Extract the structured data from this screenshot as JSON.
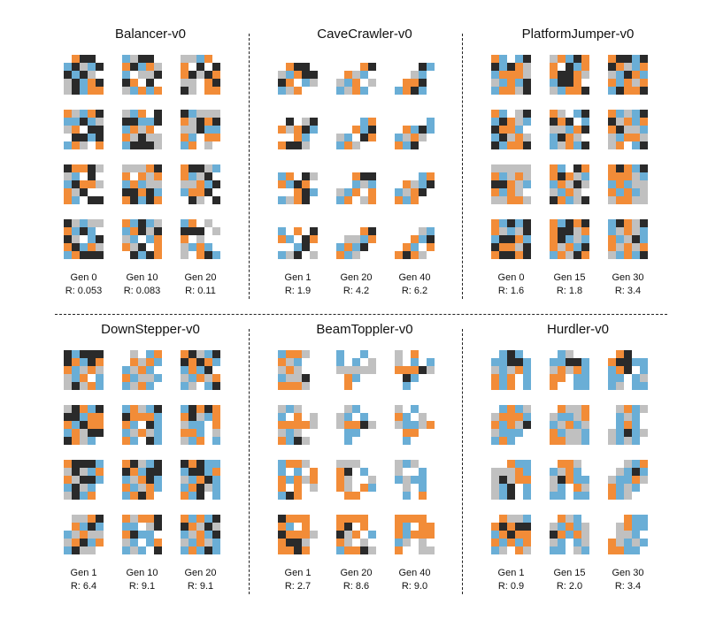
{
  "colors": {
    "rigid": "#2a2a2a",
    "soft": "#c0c0c0",
    "horizontal_actuator": "#f28c38",
    "vertical_actuator": "#6aaed6",
    "empty": "#ffffff"
  },
  "palette_order": [
    "empty",
    "rigid",
    "soft",
    "horizontal_actuator",
    "vertical_actuator"
  ],
  "panels": [
    {
      "title": "Balancer-v0",
      "columns": [
        {
          "gen": "Gen 0",
          "reward": "R: 0.053"
        },
        {
          "gen": "Gen 10",
          "reward": "R: 0.083"
        },
        {
          "gen": "Gen 20",
          "reward": "R: 0.11"
        }
      ],
      "robots": [
        [
          "03110",
          "41241",
          "14120",
          "21431",
          "21433"
        ],
        [
          "42110",
          "31432",
          "40221",
          "13010",
          "24343"
        ],
        [
          "22430",
          "30101",
          "31213",
          "22031",
          "12033"
        ],
        [
          "32431",
          "44142",
          "23011",
          "01141",
          "43203"
        ],
        [
          "24301",
          "11441",
          "43230",
          "32122",
          "41112"
        ],
        [
          "14222",
          "32131",
          "22144",
          "34033",
          "43020"
        ],
        [
          "13312",
          "24010",
          "41332",
          "32100",
          "34011"
        ],
        [
          "22231",
          "30323",
          "43422",
          "11314",
          "31413"
        ],
        [
          "31124",
          "34210",
          "22341",
          "43310",
          "01201"
        ],
        [
          "12422",
          "34140",
          "12041",
          "31432",
          "43111"
        ],
        [
          "34142",
          "43121",
          "24043",
          "32103",
          "01413"
        ],
        [
          "43020",
          "11102",
          "30200",
          "24340",
          "20314"
        ]
      ]
    },
    {
      "title": "CaveCrawler-v0",
      "columns": [
        {
          "gen": "Gen 1",
          "reward": "R: 1.9"
        },
        {
          "gen": "Gen 20",
          "reward": "R: 4.2"
        },
        {
          "gen": "Gen 40",
          "reward": "R: 6.2"
        }
      ],
      "robots": [
        [
          "00000",
          "03110",
          "24311",
          "13042",
          "42300"
        ],
        [
          "00000",
          "00031",
          "03240",
          "24302",
          "42340"
        ],
        [
          "00000",
          "00014",
          "00240",
          "03310",
          "43140"
        ],
        [
          "00000",
          "01021",
          "32314",
          "00340",
          "31120"
        ],
        [
          "00000",
          "00043",
          "00341",
          "24013",
          "43200"
        ],
        [
          "00000",
          "00004",
          "03414",
          "42320",
          "34100"
        ],
        [
          "00000",
          "43012",
          "34130",
          "00314",
          "42310"
        ],
        [
          "00000",
          "00311",
          "00424",
          "24303",
          "43023"
        ],
        [
          "00000",
          "00043",
          "03241",
          "42310",
          "34300"
        ],
        [
          "00000",
          "40301",
          "34013",
          "00410",
          "42102"
        ],
        [
          "00000",
          "00031",
          "02243",
          "43410",
          "34200"
        ],
        [
          "00000",
          "00024",
          "00341",
          "03403",
          "31320"
        ]
      ]
    },
    {
      "title": "PlatformJumper-v0",
      "columns": [
        {
          "gen": "Gen 0",
          "reward": "R: 1.6"
        },
        {
          "gen": "Gen 15",
          "reward": "R: 1.8"
        },
        {
          "gen": "Gen 30",
          "reward": "R: 3.4"
        }
      ],
      "robots": [
        [
          "34041",
          "14132",
          "43332",
          "24341",
          "43321"
        ],
        [
          "23413",
          "30143",
          "31132",
          "41130",
          "24331"
        ],
        [
          "31141",
          "13243",
          "24134",
          "34323",
          "41331"
        ],
        [
          "34021",
          "41324",
          "13340",
          "41232",
          "14331"
        ],
        [
          "32041",
          "13104",
          "22431",
          "41320",
          "42341"
        ],
        [
          "34241",
          "12343",
          "31224",
          "24332",
          "23041"
        ],
        [
          "22222",
          "34232",
          "11324",
          "34320",
          "22332"
        ],
        [
          "34013",
          "31324",
          "43212",
          "24320",
          "13421"
        ],
        [
          "31341",
          "33324",
          "43422",
          "34342",
          "23322"
        ],
        [
          "34141",
          "32421",
          "41134",
          "13321",
          "31131"
        ],
        [
          "34131",
          "31123",
          "31424",
          "32341",
          "43213"
        ],
        [
          "41321",
          "42324",
          "34214",
          "32323",
          "24341"
        ]
      ]
    },
    {
      "title": "DownStepper-v0",
      "columns": [
        {
          "gen": "Gen 1",
          "reward": "R: 6.4"
        },
        {
          "gen": "Gen 10",
          "reward": "R: 9.1"
        },
        {
          "gen": "Gen 20",
          "reward": "R: 9.1"
        }
      ],
      "robots": [
        [
          "14111",
          "13413",
          "34232",
          "24304",
          "21234"
        ],
        [
          "02043",
          "03234",
          "42340",
          "34224",
          "42340"
        ],
        [
          "31241",
          "13134",
          "43410",
          "24323",
          "42041"
        ],
        [
          "21341",
          "11433",
          "34133",
          "43211",
          "13240"
        ],
        [
          "43241",
          "13334",
          "34014",
          "42324",
          "34014"
        ],
        [
          "41313",
          "31243",
          "24403",
          "33402",
          "24304"
        ],
        [
          "31114",
          "21243",
          "32114",
          "41240",
          "21430"
        ],
        [
          "31241",
          "13411",
          "42314",
          "34234",
          "43130"
        ],
        [
          "13144",
          "41143",
          "24314",
          "43124",
          "34104"
        ],
        [
          "02231",
          "03414",
          "42322",
          "23143",
          "41220"
        ],
        [
          "32331",
          "44021",
          "31440",
          "24043",
          "42401"
        ],
        [
          "34341",
          "13212",
          "42341",
          "24324",
          "43414"
        ]
      ]
    },
    {
      "title": "BeamToppler-v0",
      "columns": [
        {
          "gen": "Gen 1",
          "reward": "R: 2.7"
        },
        {
          "gen": "Gen 20",
          "reward": "R: 8.6"
        },
        {
          "gen": "Gen 40",
          "reward": "R: 9.0"
        }
      ],
      "robots": [
        [
          "43320",
          "32400",
          "23200",
          "42210",
          "33320"
        ],
        [
          "40040",
          "40402",
          "22222",
          "03400",
          "03000"
        ],
        [
          "20300",
          "20404",
          "33312",
          "01400",
          "04000"
        ],
        [
          "24200",
          "40302",
          "33332",
          "24200",
          "34120"
        ],
        [
          "02400",
          "24040",
          "23312",
          "04400",
          "04000"
        ],
        [
          "20400",
          "34020",
          "24423",
          "03300",
          "04000"
        ],
        [
          "43320",
          "40403",
          "34323",
          "30302",
          "41300"
        ],
        [
          "22200",
          "31040",
          "32002",
          "32034",
          "03300"
        ],
        [
          "24200",
          "20040",
          "42440",
          "02040",
          "04030"
        ],
        [
          "13330",
          "34030",
          "13332",
          "31120",
          "33130"
        ],
        [
          "33330",
          "31030",
          "12304",
          "32020",
          "43312"
        ],
        [
          "33330",
          "34033",
          "34333",
          "42020",
          "30022"
        ]
      ]
    },
    {
      "title": "Hurdler-v0",
      "columns": [
        {
          "gen": "Gen 1",
          "reward": "R: 0.9"
        },
        {
          "gen": "Gen 15",
          "reward": "R: 2.0"
        },
        {
          "gen": "Gen 30",
          "reward": "R: 3.4"
        }
      ],
      "robots": [
        [
          "04140",
          "44114",
          "24234",
          "34304",
          "34304"
        ],
        [
          "04200",
          "44114",
          "23234",
          "33044",
          "30044"
        ],
        [
          "03100",
          "31144",
          "43104",
          "44042",
          "42044"
        ],
        [
          "04342",
          "23334",
          "34321",
          "24440",
          "43400"
        ],
        [
          "03223",
          "24423",
          "42342",
          "34224",
          "33224"
        ],
        [
          "02342",
          "04240",
          "04340",
          "24142",
          "24240"
        ],
        [
          "00344",
          "22234",
          "21233",
          "24104",
          "24104"
        ],
        [
          "03320",
          "42340",
          "21344",
          "24032",
          "44044"
        ],
        [
          "00243",
          "02414",
          "24432",
          "34240",
          "34200"
        ],
        [
          "03224",
          "31311",
          "43133",
          "34343",
          "42032"
        ],
        [
          "03240",
          "24342",
          "13432",
          "24042",
          "44024"
        ],
        [
          "00344",
          "02344",
          "02240",
          "32424",
          "33440"
        ]
      ]
    }
  ]
}
